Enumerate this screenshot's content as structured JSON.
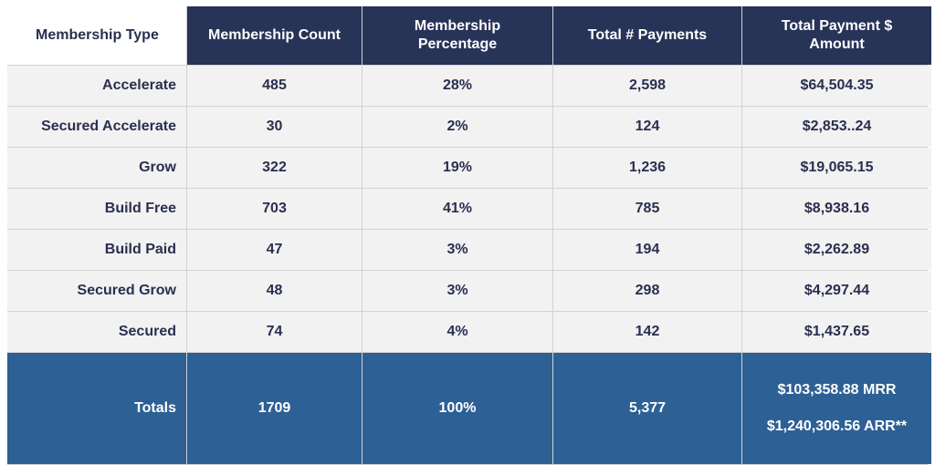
{
  "headers": [
    "Membership Type",
    "Membership Count",
    "Membership\nPercentage",
    "Total # Payments",
    "Total Payment $\nAmount"
  ],
  "rows": [
    {
      "type": "Accelerate",
      "count": "485",
      "percentage": "28%",
      "payments": "2,598",
      "amount": "$64,504.35"
    },
    {
      "type": "Secured Accelerate",
      "count": "30",
      "percentage": "2%",
      "payments": "124",
      "amount": "$2,853..24"
    },
    {
      "type": "Grow",
      "count": "322",
      "percentage": "19%",
      "payments": "1,236",
      "amount": "$19,065.15"
    },
    {
      "type": "Build Free",
      "count": "703",
      "percentage": "41%",
      "payments": "785",
      "amount": "$8,938.16"
    },
    {
      "type": "Build Paid",
      "count": "47",
      "percentage": "3%",
      "payments": "194",
      "amount": "$2,262.89"
    },
    {
      "type": "Secured Grow",
      "count": "48",
      "percentage": "3%",
      "payments": "298",
      "amount": "$4,297.44"
    },
    {
      "type": "Secured",
      "count": "74",
      "percentage": "4%",
      "payments": "142",
      "amount": "$1,437.65"
    }
  ],
  "totals": {
    "label": "Totals",
    "count": "1709",
    "percentage": "100%",
    "payments": "5,377",
    "mrr": "$103,358.88 MRR",
    "arr": "$1,240,306.56 ARR**"
  },
  "colors": {
    "header_bg": "#283358",
    "totals_bg": "#2d6094",
    "body_bg": "#f2f2f2",
    "text_dark": "#2a2f4f"
  }
}
